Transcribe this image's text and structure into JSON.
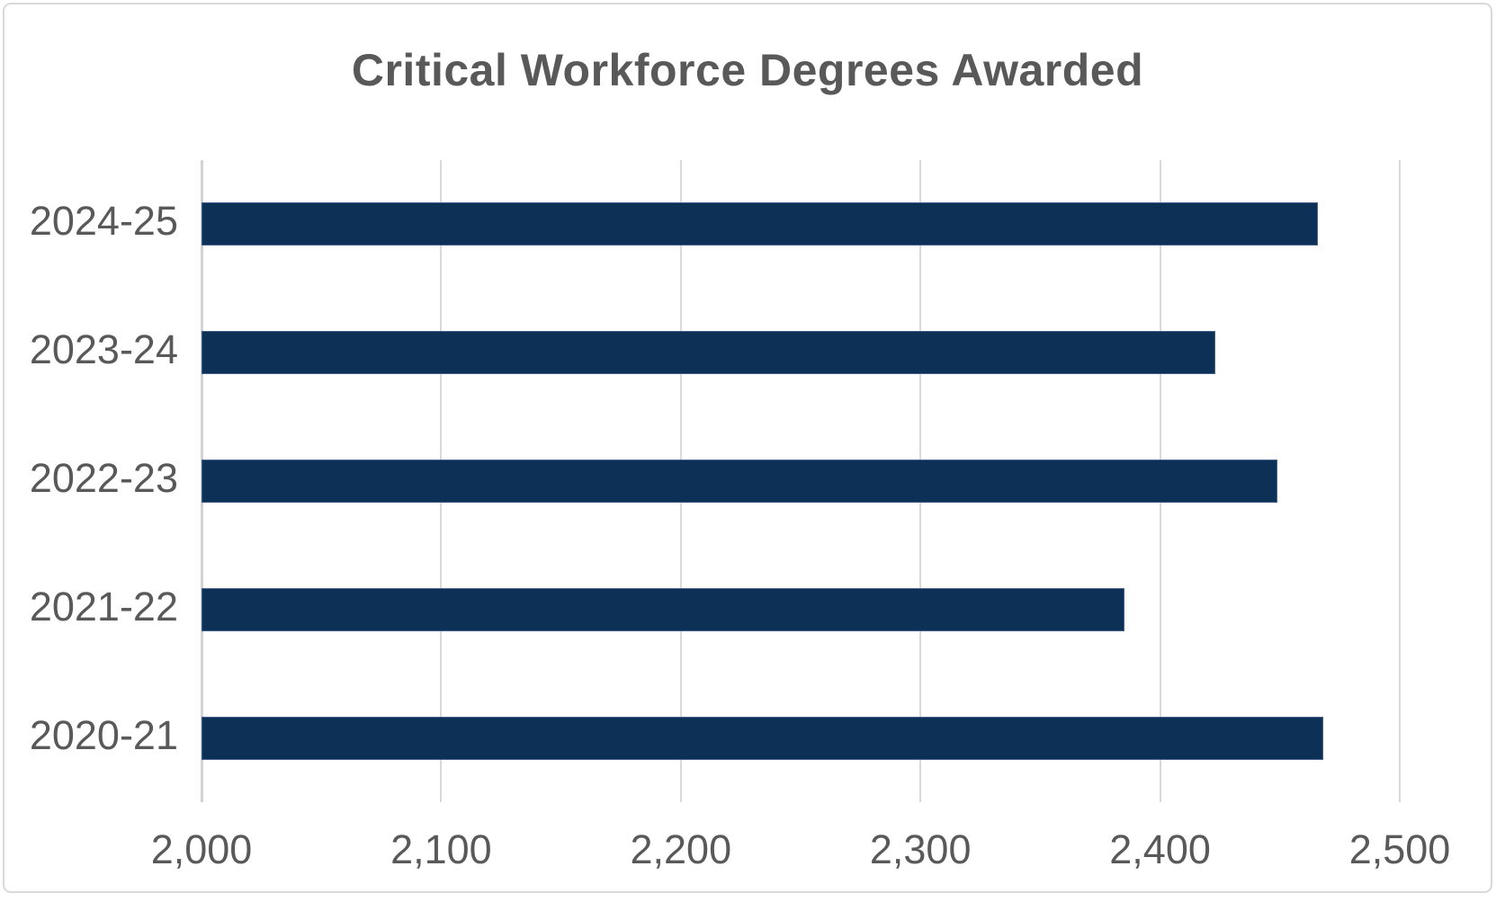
{
  "chart_data": {
    "type": "bar",
    "orientation": "horizontal",
    "title": "Critical Workforce Degrees Awarded",
    "categories": [
      "2024-25",
      "2023-24",
      "2022-23",
      "2021-22",
      "2020-21"
    ],
    "values": [
      2466,
      2423,
      2449,
      2385,
      2468
    ],
    "xlabel": "",
    "ylabel": "",
    "xlim": [
      2000,
      2500
    ],
    "x_tick_labels": [
      "2,000",
      "2,100",
      "2,200",
      "2,300",
      "2,400",
      "2,500"
    ],
    "x_tick_values": [
      2000,
      2100,
      2200,
      2300,
      2400,
      2500
    ],
    "grid": true,
    "legend": false
  },
  "colors": {
    "bar_fill": "#0d3056",
    "bar_border": "#45618a",
    "title_text": "#595959",
    "axis_text": "#595959",
    "gridline": "#d9d9d9",
    "frame_border": "#d9d9d9",
    "background": "#ffffff"
  }
}
